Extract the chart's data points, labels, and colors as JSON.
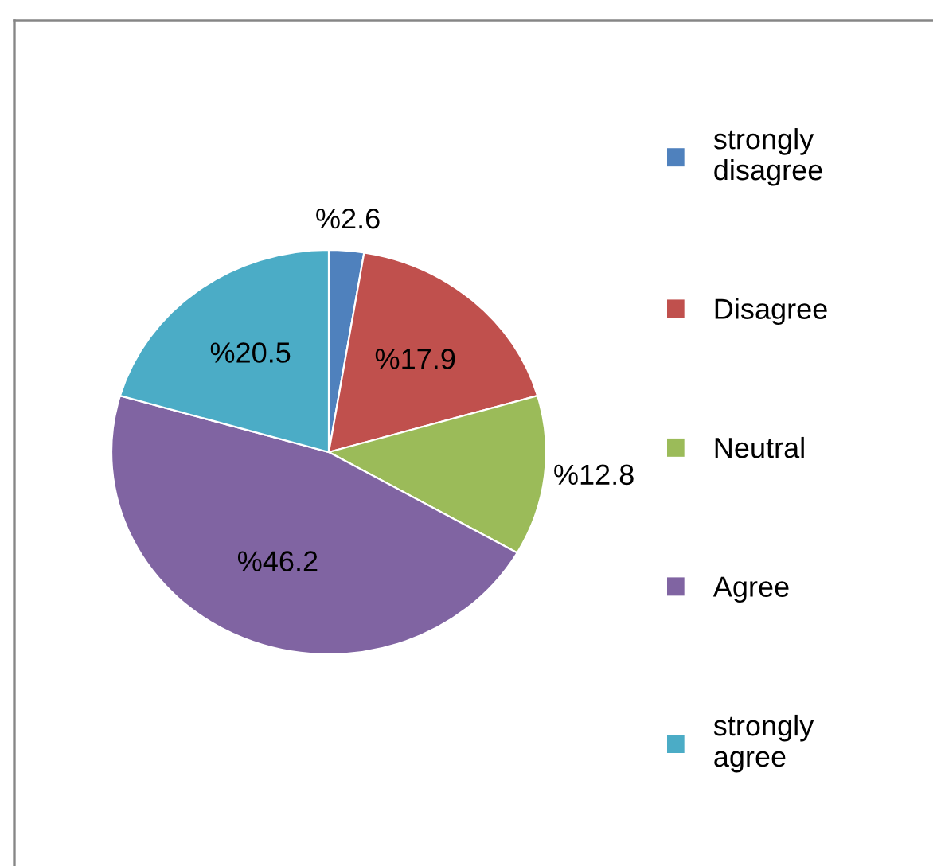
{
  "chart_data": {
    "type": "pie",
    "categories": [
      "strongly disagree",
      "Disagree",
      "Neutral",
      "Agree",
      "strongly agree"
    ],
    "values": [
      2.6,
      17.9,
      12.8,
      46.2,
      20.5
    ],
    "colors": [
      "#4f81bd",
      "#c0504d",
      "#9bbb59",
      "#8064a2",
      "#4bacc6"
    ],
    "value_labels": [
      "%2.6",
      "%17.9",
      "%12.8",
      "%46.2",
      "%20.5"
    ],
    "legend": "right"
  }
}
